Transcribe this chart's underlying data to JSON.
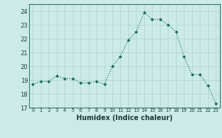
{
  "x": [
    0,
    1,
    2,
    3,
    4,
    5,
    6,
    7,
    8,
    9,
    10,
    11,
    12,
    13,
    14,
    15,
    16,
    17,
    18,
    19,
    20,
    21,
    22,
    23
  ],
  "y": [
    18.7,
    18.9,
    18.9,
    19.3,
    19.1,
    19.1,
    18.8,
    18.8,
    18.9,
    18.7,
    20.0,
    20.7,
    21.9,
    22.5,
    23.9,
    23.4,
    23.4,
    23.0,
    22.5,
    20.7,
    19.4,
    19.4,
    18.6,
    17.3
  ],
  "line_color": "#1a6b5a",
  "marker_color": "#1a6b5a",
  "bg_color": "#cceae8",
  "grid_color": "#aad4d0",
  "xlabel": "Humidex (Indice chaleur)",
  "xlim": [
    -0.5,
    23.5
  ],
  "ylim": [
    17,
    24.5
  ],
  "yticks": [
    17,
    18,
    19,
    20,
    21,
    22,
    23,
    24
  ],
  "xticks": [
    0,
    1,
    2,
    3,
    4,
    5,
    6,
    7,
    8,
    9,
    10,
    11,
    12,
    13,
    14,
    15,
    16,
    17,
    18,
    19,
    20,
    21,
    22,
    23
  ]
}
